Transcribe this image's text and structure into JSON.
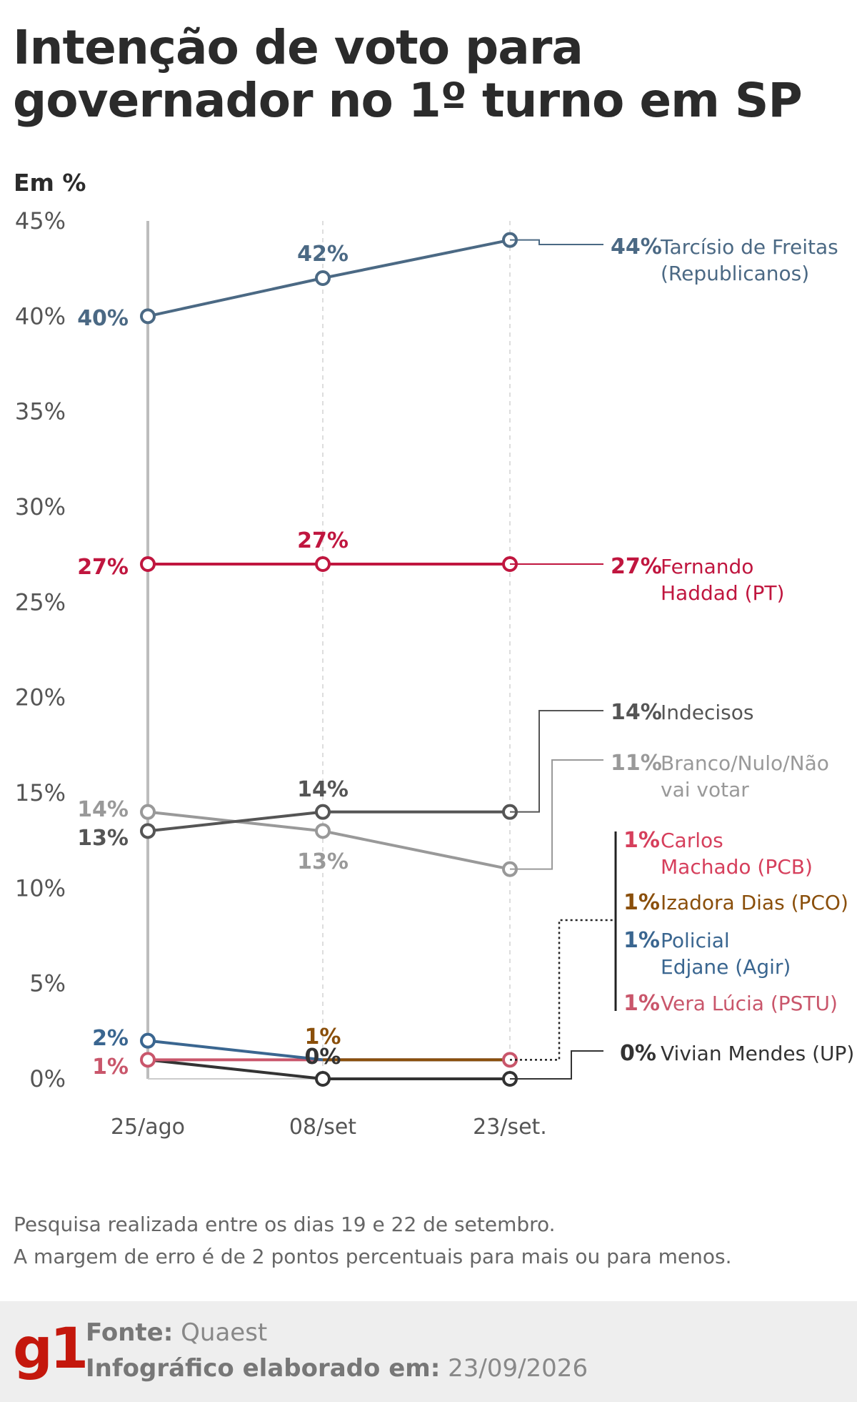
{
  "title": "Intenção de voto para governador no 1º turno em SP",
  "footer": {
    "note_line1": "Pesquisa realizada entre os dias 19 e 22 de setembro.",
    "note_line2": "A margem de erro é de 2 pontos percentuais para mais ou para menos.",
    "source_label": "Fonte:",
    "source_value": "Quaest",
    "date_label": "Infográfico elaborado em:",
    "date_value": "23/09/2026",
    "logo": "g1"
  },
  "chart_data": {
    "type": "line",
    "ylabel": "Em %",
    "ylim": [
      0,
      45
    ],
    "yticks": [
      "0%",
      "5%",
      "10%",
      "15%",
      "20%",
      "25%",
      "30%",
      "35%",
      "40%",
      "45%"
    ],
    "x": [
      "25/ago",
      "08/set",
      "23/set."
    ],
    "grid": "vertical dashed lines at survey dates",
    "series": [
      {
        "name": "Tarcísio de Freitas (Republicanos)",
        "label_lines": [
          "Tarcísio de Freitas",
          "(Republicanos)"
        ],
        "color": "#4b6984",
        "values": [
          40,
          42,
          44
        ],
        "point_labels": [
          "40%",
          "42%",
          null
        ],
        "end_label": "44%"
      },
      {
        "name": "Fernando Haddad (PT)",
        "label_lines": [
          "Fernando",
          "Haddad (PT)"
        ],
        "color": "#c0163f",
        "values": [
          27,
          27,
          27
        ],
        "point_labels": [
          "27%",
          "27%",
          null
        ],
        "end_label": "27%"
      },
      {
        "name": "Indecisos",
        "label_lines": [
          "Indecisos"
        ],
        "color": "#555555",
        "values": [
          13,
          14,
          14
        ],
        "point_labels": [
          "13%",
          "14%",
          null
        ],
        "end_label": "14%"
      },
      {
        "name": "Branco/Nulo/Não vai votar",
        "label_lines": [
          "Branco/Nulo/Não",
          "vai votar"
        ],
        "color": "#999999",
        "values": [
          14,
          13,
          11
        ],
        "point_labels": [
          "14%",
          "13%",
          null
        ],
        "end_label": "11%"
      },
      {
        "name": "Carlos Machado (PCB)",
        "label_lines": [
          "Carlos",
          "Machado (PCB)"
        ],
        "color": "#d63f5c",
        "values": [
          null,
          null,
          1
        ],
        "end_label": "1%"
      },
      {
        "name": "Izadora Dias (PCO)",
        "label_lines": [
          "Izadora Dias (PCO)"
        ],
        "color": "#8a4f0b",
        "values": [
          null,
          1,
          1
        ],
        "point_labels": [
          null,
          "1%",
          null
        ],
        "end_label": "1%"
      },
      {
        "name": "Policial Edjane (Agir)",
        "label_lines": [
          "Policial",
          "Edjane (Agir)"
        ],
        "color": "#3a6690",
        "values": [
          2,
          1,
          1
        ],
        "point_labels": [
          "2%",
          null,
          null
        ],
        "end_label": "1%"
      },
      {
        "name": "Vera Lúcia (PSTU)",
        "label_lines": [
          "Vera Lúcia (PSTU)"
        ],
        "color": "#c9566b",
        "values": [
          1,
          1,
          1
        ],
        "point_labels": [
          "1%",
          null,
          null
        ],
        "end_label": "1%"
      },
      {
        "name": "Vivian Mendes (UP)",
        "label_lines": [
          "Vivian Mendes (UP)"
        ],
        "color": "#333333",
        "values": [
          1,
          0,
          0
        ],
        "point_labels": [
          null,
          "0%",
          null
        ],
        "end_label": "0%"
      }
    ]
  }
}
